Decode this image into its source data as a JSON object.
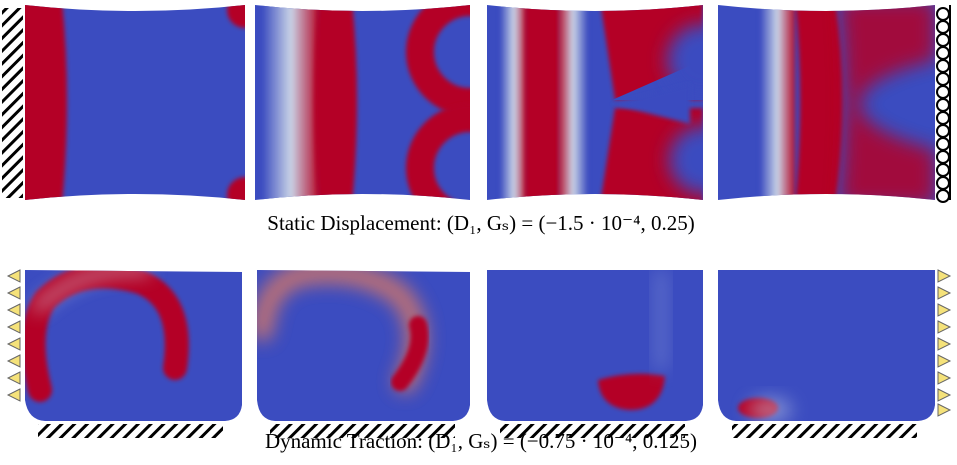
{
  "captions": {
    "static": "Static Displacement: (D₁, Gₛ) = (−1.5 · 10⁻⁴, 0.25)",
    "dynamic": "Dynamic Traction: (D₁, Gₛ) = (−0.75 · 10⁻⁴, 0.125)"
  }
}
